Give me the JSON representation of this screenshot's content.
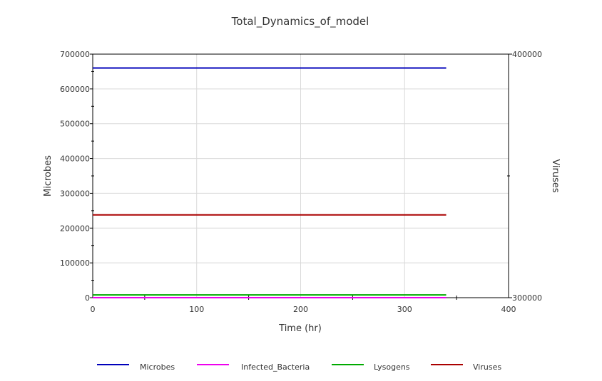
{
  "chart_data": {
    "type": "line",
    "title": "Total_Dynamics_of_model",
    "xlabel": "Time (hr)",
    "ylabel": "Microbes",
    "y2label": "Viruses",
    "xlim": [
      0,
      400
    ],
    "ylim": [
      0,
      700000
    ],
    "y2lim": [
      300000,
      400000
    ],
    "x_ticks": [
      0,
      100,
      200,
      300,
      400
    ],
    "y_ticks": [
      0,
      100000,
      200000,
      300000,
      400000,
      500000,
      600000,
      700000
    ],
    "y2_ticks": [
      300000,
      400000
    ],
    "grid": true,
    "legend_position": "bottom",
    "series": [
      {
        "name": "Microbes",
        "color": "#0000bb",
        "axis": "left",
        "x": [
          0,
          340
        ],
        "values": [
          660000,
          660000
        ]
      },
      {
        "name": "Infected_Bacteria",
        "color": "#ee00ee",
        "axis": "left",
        "x": [
          0,
          340
        ],
        "values": [
          0,
          0
        ]
      },
      {
        "name": "Lysogens",
        "color": "#00aa00",
        "axis": "left",
        "x": [
          0,
          340
        ],
        "values": [
          8000,
          8000
        ]
      },
      {
        "name": "Viruses",
        "color": "#aa0000",
        "axis": "right",
        "x": [
          0,
          340
        ],
        "values": [
          334000,
          334000
        ]
      }
    ]
  }
}
